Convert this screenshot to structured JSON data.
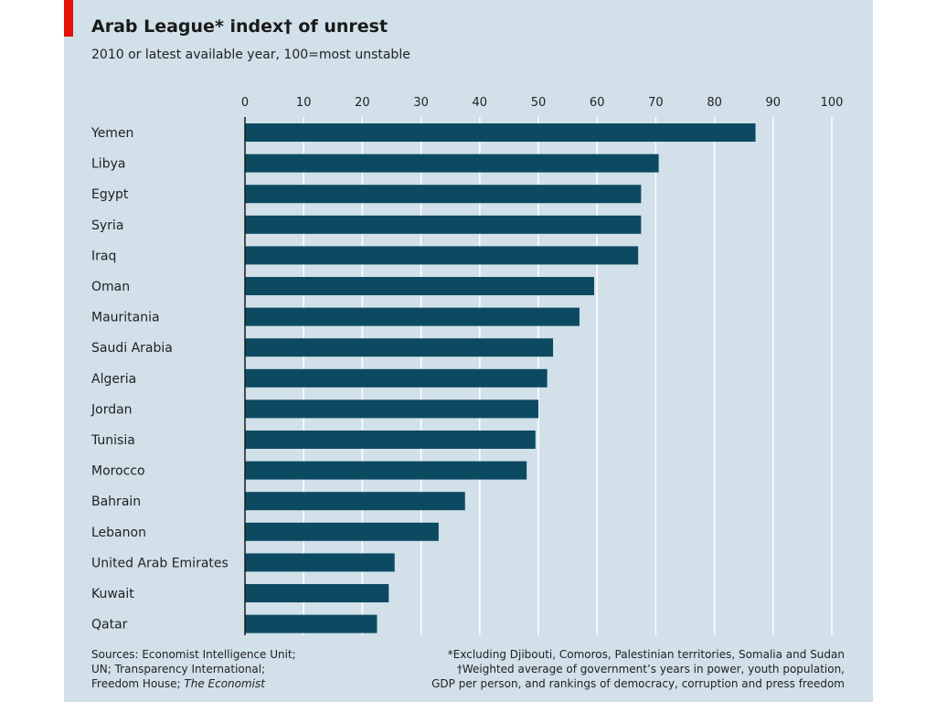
{
  "colors": {
    "panel": "#d1e0e9",
    "accent": "#e3120b",
    "bar": "#0c4a62",
    "grid": "#ffffff"
  },
  "title": "Arab League* index† of unrest",
  "subtitle": "2010 or latest available year, 100=most unstable",
  "chart_data": {
    "type": "bar",
    "orientation": "horizontal",
    "title": "Arab League* index† of unrest",
    "subtitle": "2010 or latest available year, 100=most unstable",
    "xlim": [
      0,
      100
    ],
    "xticks": [
      0,
      10,
      20,
      30,
      40,
      50,
      60,
      70,
      80,
      90,
      100
    ],
    "axis_position": "top",
    "grid": true,
    "categories": [
      "Yemen",
      "Libya",
      "Egypt",
      "Syria",
      "Iraq",
      "Oman",
      "Mauritania",
      "Saudi Arabia",
      "Algeria",
      "Jordan",
      "Tunisia",
      "Morocco",
      "Bahrain",
      "Lebanon",
      "United Arab Emirates",
      "Kuwait",
      "Qatar"
    ],
    "values": [
      87,
      70.5,
      67.5,
      67.5,
      67,
      59.5,
      57,
      52.5,
      51.5,
      50,
      49.5,
      48,
      37.5,
      33,
      25.5,
      24.5,
      22.5
    ]
  },
  "footer": {
    "sources_lines": [
      "Sources: Economist Intelligence Unit;",
      "UN; Transparency International;",
      "Freedom House; "
    ],
    "sources_italic": "The Economist",
    "note_lines": [
      "*Excluding Djibouti, Comoros, Palestinian territories, Somalia and Sudan",
      "†Weighted average of government’s years in power, youth population,",
      "GDP per person, and rankings of democracy, corruption and press freedom"
    ]
  }
}
